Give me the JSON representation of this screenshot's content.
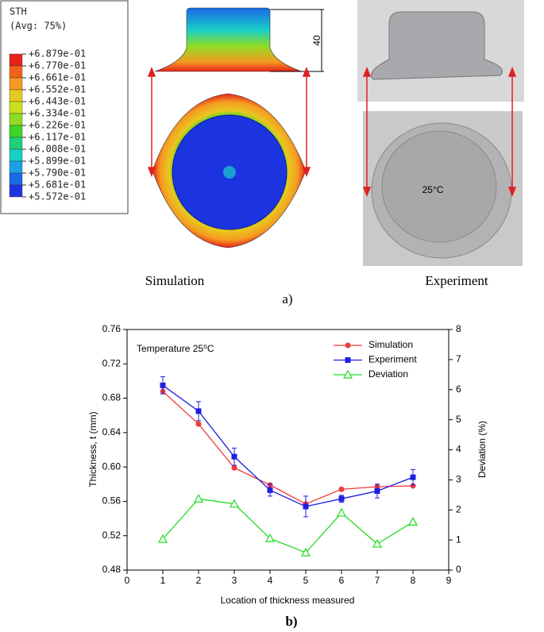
{
  "figure_a": {
    "legend_title": "STH",
    "legend_subtitle": "(Avg: 75%)",
    "legend_labels": [
      "+6.879e-01",
      "+6.770e-01",
      "+6.661e-01",
      "+6.552e-01",
      "+6.443e-01",
      "+6.334e-01",
      "+6.226e-01",
      "+6.117e-01",
      "+6.008e-01",
      "+5.899e-01",
      "+5.790e-01",
      "+5.681e-01",
      "+5.572e-01"
    ],
    "colorbar_colors": [
      "#e8201c",
      "#f0621a",
      "#f59a22",
      "#e8c81e",
      "#c8e020",
      "#8fdc22",
      "#3dd428",
      "#1fd07a",
      "#18cfc8",
      "#1aa0e8",
      "#1a6ae6",
      "#1c34e0"
    ],
    "dimension_label": "40",
    "photo_text": "25°C",
    "left_caption": "Simulation",
    "right_caption": "Experiment",
    "panel_label": "a)"
  },
  "chart_data": {
    "type": "line",
    "annotation": "Temperature 25⁰C",
    "x_label": "Location of thickness measured",
    "y_label": "Thickness, t (mm)",
    "y2_label": "Deviation (%)",
    "x": [
      1,
      2,
      3,
      4,
      5,
      6,
      7,
      8
    ],
    "xlim": [
      0,
      9
    ],
    "xticks": [
      0,
      1,
      2,
      3,
      4,
      5,
      6,
      7,
      8,
      9
    ],
    "ylim": [
      0.48,
      0.76
    ],
    "yticks": [
      0.48,
      0.52,
      0.56,
      {
        "value": 0.6,
        "label": "0.60"
      },
      0.64,
      0.68,
      0.72,
      0.76
    ],
    "y2lim": [
      0,
      8
    ],
    "y2ticks": [
      0,
      1,
      2,
      3,
      4,
      5,
      6,
      7,
      8
    ],
    "legend": "upper right",
    "series": [
      {
        "name": "Simulation",
        "color": "#ee3b3b",
        "marker": "circle",
        "values": [
          0.688,
          0.65,
          0.599,
          0.579,
          0.557,
          0.574,
          0.577,
          0.578
        ]
      },
      {
        "name": "Experiment",
        "color": "#1f1fe0",
        "marker": "square",
        "values": [
          0.695,
          0.665,
          0.612,
          0.573,
          0.554,
          0.563,
          0.572,
          0.588
        ],
        "errors": [
          0.01,
          0.011,
          0.01,
          0.007,
          0.012,
          0.004,
          0.008,
          0.009
        ]
      },
      {
        "name": "Deviation",
        "color": "#22dd22",
        "marker": "triangle",
        "axis": "y2",
        "values": [
          1.03,
          2.37,
          2.2,
          1.05,
          0.58,
          1.9,
          0.87,
          1.6
        ]
      }
    ]
  },
  "panel_b_label": "b)"
}
